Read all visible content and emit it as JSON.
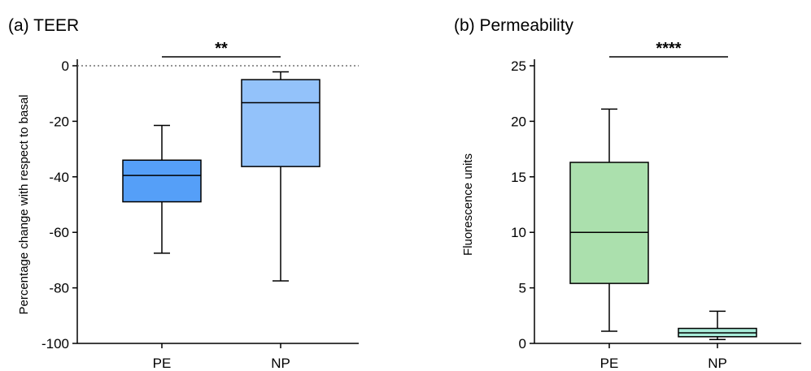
{
  "panels": [
    {
      "title": "(a) TEER",
      "ylabel": "Percentage change with respect to basal",
      "significance": "**"
    },
    {
      "title": "(b) Permeability",
      "ylabel": "Fluorescence units",
      "significance": "****"
    }
  ],
  "chart_data": [
    {
      "type": "box",
      "title": "(a) TEER",
      "xlabel": "",
      "ylabel": "Percentage change with respect to basal",
      "ylim": [
        -100,
        0
      ],
      "yticks": [
        0,
        -20,
        -40,
        -60,
        -80,
        -100
      ],
      "reference_line": {
        "y": 0,
        "style": "dotted"
      },
      "significance": {
        "label": "**",
        "between": [
          "PE",
          "NP"
        ]
      },
      "categories": [
        "PE",
        "NP"
      ],
      "boxes": [
        {
          "category": "PE",
          "min": -67.5,
          "q1": -49,
          "median": -39.5,
          "q3": -34,
          "max": -21.5,
          "color": "#559ff8"
        },
        {
          "category": "NP",
          "min": -77.5,
          "q1": -36.3,
          "median": -13.3,
          "q3": -5,
          "max": -2.2,
          "color": "#93c2fa"
        }
      ]
    },
    {
      "type": "box",
      "title": "(b) Permeability",
      "xlabel": "",
      "ylabel": "Fluorescence units",
      "ylim": [
        0,
        25
      ],
      "yticks": [
        0,
        5,
        10,
        15,
        20,
        25
      ],
      "significance": {
        "label": "****",
        "between": [
          "PE",
          "NP"
        ]
      },
      "categories": [
        "PE",
        "NP"
      ],
      "boxes": [
        {
          "category": "PE",
          "min": 1.1,
          "q1": 5.4,
          "median": 10,
          "q3": 16.3,
          "max": 21.1,
          "color": "#abe0ad"
        },
        {
          "category": "NP",
          "min": 0.35,
          "q1": 0.6,
          "median": 0.95,
          "q3": 1.35,
          "max": 2.9,
          "color": "#a8ecd9"
        }
      ]
    }
  ]
}
